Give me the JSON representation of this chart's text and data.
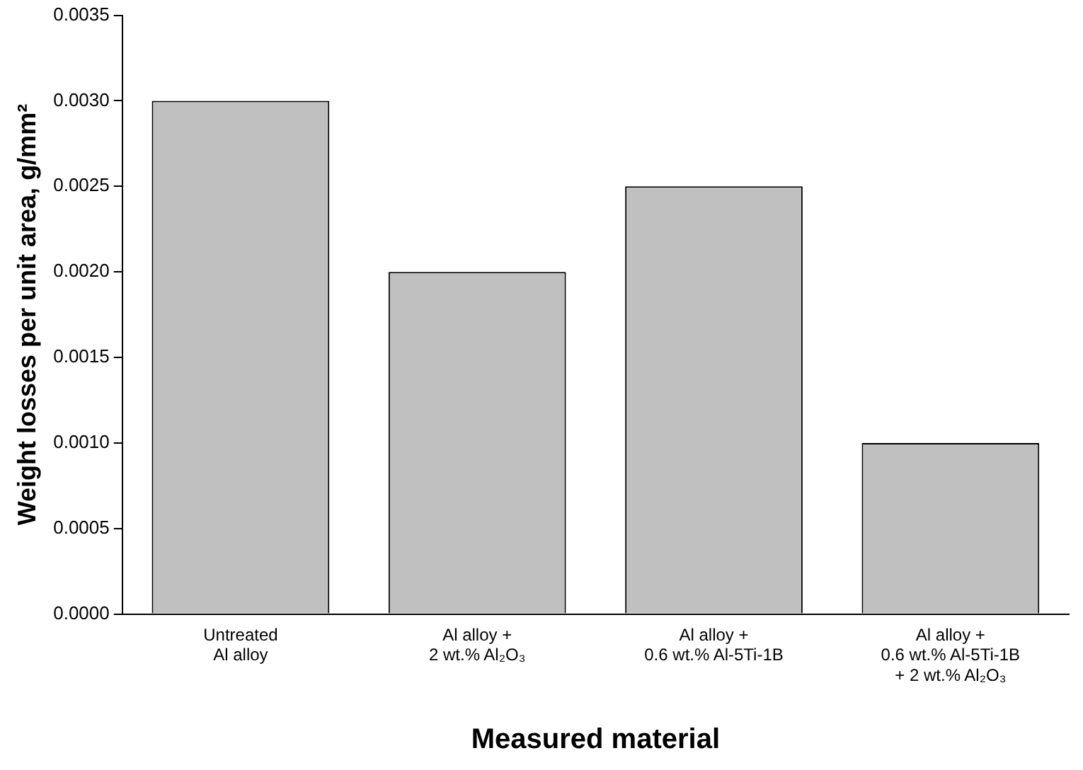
{
  "chart_data": {
    "type": "bar",
    "xlabel": "Measured material",
    "ylabel": "Weight losses per unit area, g/mm²",
    "categories": [
      "Untreated\nAl alloy",
      "Al alloy +\n2 wt.% Al₂O₃",
      "Al alloy +\n0.6 wt.% Al-5Ti-1B",
      "Al alloy +\n0.6 wt.% Al-5Ti-1B\n+ 2 wt.% Al₂O₃"
    ],
    "values": [
      0.003,
      0.002,
      0.0025,
      0.001
    ],
    "color": "#c0c0c0",
    "ylim": [
      0,
      0.0035
    ],
    "yticks": [
      {
        "value": 0,
        "label": "0.0000"
      },
      {
        "value": 0.0005,
        "label": "0.0005"
      },
      {
        "value": 0.001,
        "label": "0.0010"
      },
      {
        "value": 0.0015,
        "label": "0.0015"
      },
      {
        "value": 0.002,
        "label": "0.0020"
      },
      {
        "value": 0.0025,
        "label": "0.0025"
      },
      {
        "value": 0.003,
        "label": "0.0030"
      },
      {
        "value": 0.0035,
        "label": "0.0035"
      }
    ],
    "grid": false,
    "legend": false
  }
}
